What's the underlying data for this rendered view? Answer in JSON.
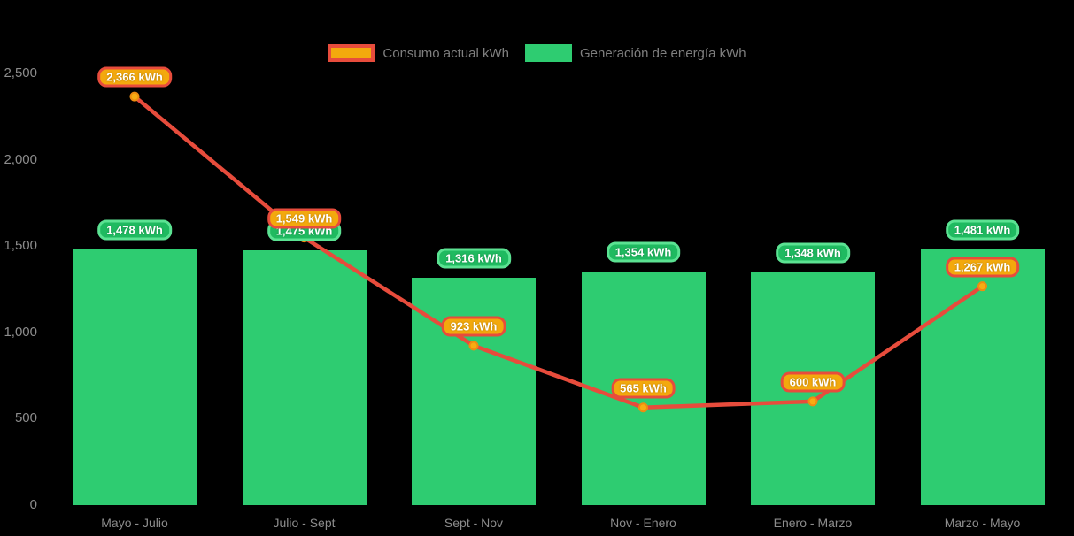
{
  "background": "#000000",
  "legend": {
    "items": [
      {
        "label": "Consumo actual kWh"
      },
      {
        "label": "Generación de energía kWh"
      }
    ]
  },
  "chart_data": {
    "type": "combo-bar-line",
    "title": "",
    "categories": [
      "Mayo - Julio",
      "Julio - Sept",
      "Sept - Nov",
      "Nov - Enero",
      "Enero - Marzo",
      "Marzo - Mayo"
    ],
    "series": [
      {
        "name": "Consumo actual kWh",
        "type": "line",
        "values": [
          2366,
          1549,
          923,
          565,
          600,
          1267
        ],
        "labels": [
          "2,366 kWh",
          "1,549 kWh",
          "923 kWh",
          "565 kWh",
          "600 kWh",
          "1,267 kWh"
        ],
        "line_color": "#e74c3c",
        "marker_fill": "#f8ac12",
        "marker_stroke": "#ef8c10",
        "label_fill": "#f3a90d",
        "label_border": "#e74c3c"
      },
      {
        "name": "Generación de energía kWh",
        "type": "bar",
        "values": [
          1478,
          1475,
          1316,
          1354,
          1348,
          1481
        ],
        "labels": [
          "1,478 kWh",
          "1,475 kWh",
          "1,316 kWh",
          "1,354 kWh",
          "1,348 kWh",
          "1,481 kWh"
        ],
        "bar_color": "#2ecc71",
        "label_fill": "#1fba60",
        "label_border": "#5be292"
      }
    ],
    "y_axis": {
      "min": 0,
      "max": 2500,
      "tick_step": 500,
      "tick_labels": [
        "0",
        "500",
        "1,000",
        "1,500",
        "2,000",
        "2,500"
      ]
    },
    "axis_text_color": "#8c8c8c",
    "legend_text_color": "#7f7f7f",
    "legend_position": "top",
    "grid": false,
    "data_label_suffix": "kWh"
  }
}
